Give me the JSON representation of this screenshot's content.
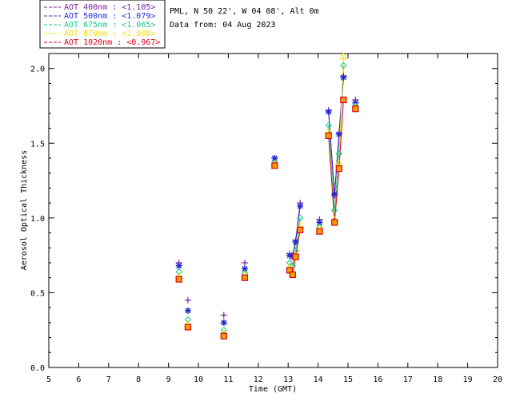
{
  "header": {
    "location": "PML, N 50 22', W 04 08', Alt 0m",
    "date": "Data from: 04 Aug 2023"
  },
  "legend": [
    {
      "label": "AOT  400nm : <1.105>",
      "color": "#7a1fa2"
    },
    {
      "label": "AOT  500nm : <1.079>",
      "color": "#1f2bd6"
    },
    {
      "label": "AOT  675nm : <1.065>",
      "color": "#10c88a"
    },
    {
      "label": "AOT  870nm : <1.008>",
      "color": "#f2e000"
    },
    {
      "label": "AOT 1020nm : <0.967>",
      "color": "#d9001b"
    }
  ],
  "chart_data": {
    "type": "scatter",
    "title": "",
    "xlabel": "Time (GMT)",
    "ylabel": "Aerosol Optical Thickness",
    "xlim": [
      5,
      20
    ],
    "ylim": [
      0.0,
      2.1
    ],
    "x_ticks": [
      "5",
      "6",
      "7",
      "8",
      "9",
      "10",
      "11",
      "12",
      "13",
      "14",
      "15",
      "16",
      "17",
      "18",
      "19",
      "20"
    ],
    "y_ticks": [
      "0.0",
      "0.5",
      "1.0",
      "1.5",
      "2.0"
    ],
    "y_tick_values": [
      0.0,
      0.5,
      1.0,
      1.5,
      2.0
    ],
    "grid": false,
    "legend_position": "top-left",
    "series": [
      {
        "name": "AOT  400nm : <1.105>",
        "marker": "plus",
        "color": "#7a1fa2",
        "x": [
          9.35,
          9.65,
          10.85,
          11.55,
          12.55,
          13.05,
          13.15,
          13.25,
          13.4,
          14.05,
          14.35,
          14.55,
          14.7,
          14.85,
          15.25
        ],
        "y": [
          0.7,
          0.45,
          0.35,
          0.7,
          1.4,
          0.76,
          0.75,
          0.85,
          1.1,
          0.99,
          1.72,
          1.15,
          1.57,
          1.95,
          1.79
        ]
      },
      {
        "name": "AOT  500nm : <1.079>",
        "marker": "asterisk",
        "color": "#1f2bd6",
        "x": [
          9.35,
          9.65,
          10.85,
          11.55,
          12.55,
          13.05,
          13.15,
          13.25,
          13.4,
          14.05,
          14.35,
          14.55,
          14.7,
          14.85,
          15.25
        ],
        "y": [
          0.68,
          0.38,
          0.3,
          0.66,
          1.4,
          0.75,
          0.74,
          0.84,
          1.08,
          0.97,
          1.71,
          1.16,
          1.56,
          1.94,
          1.77
        ]
      },
      {
        "name": "AOT  675nm : <1.065>",
        "marker": "diamond",
        "color": "#10c88a",
        "x": [
          9.35,
          9.65,
          10.85,
          11.55,
          12.55,
          13.05,
          13.15,
          13.25,
          13.4,
          14.05,
          14.35,
          14.55,
          14.7,
          14.85,
          15.25
        ],
        "y": [
          0.64,
          0.32,
          0.25,
          0.63,
          1.37,
          0.7,
          0.68,
          0.78,
          1.0,
          0.94,
          1.62,
          1.05,
          1.43,
          2.02,
          1.75
        ]
      },
      {
        "name": "AOT  870nm : <1.008>",
        "marker": "triangle",
        "color": "#f2e000",
        "x": [
          9.35,
          9.65,
          10.85,
          11.55,
          12.55,
          13.05,
          13.15,
          13.25,
          13.4,
          14.05,
          14.35,
          14.55,
          14.7,
          14.85,
          15.25
        ],
        "y": [
          0.61,
          0.29,
          0.23,
          0.62,
          1.36,
          0.67,
          0.64,
          0.75,
          0.95,
          0.93,
          1.58,
          0.99,
          1.37,
          2.08,
          1.74
        ]
      },
      {
        "name": "AOT 1020nm : <0.967>",
        "marker": "square",
        "color": "#d9001b",
        "x": [
          9.35,
          9.65,
          10.85,
          11.55,
          12.55,
          13.05,
          13.15,
          13.25,
          13.4,
          14.05,
          14.35,
          14.55,
          14.7,
          14.85,
          15.25
        ],
        "y": [
          0.59,
          0.27,
          0.21,
          0.6,
          1.35,
          0.65,
          0.62,
          0.74,
          0.92,
          0.91,
          1.55,
          0.97,
          1.33,
          1.79,
          1.73
        ]
      }
    ],
    "connected_segments": [
      [
        5,
        8
      ],
      [
        10,
        13
      ]
    ]
  }
}
